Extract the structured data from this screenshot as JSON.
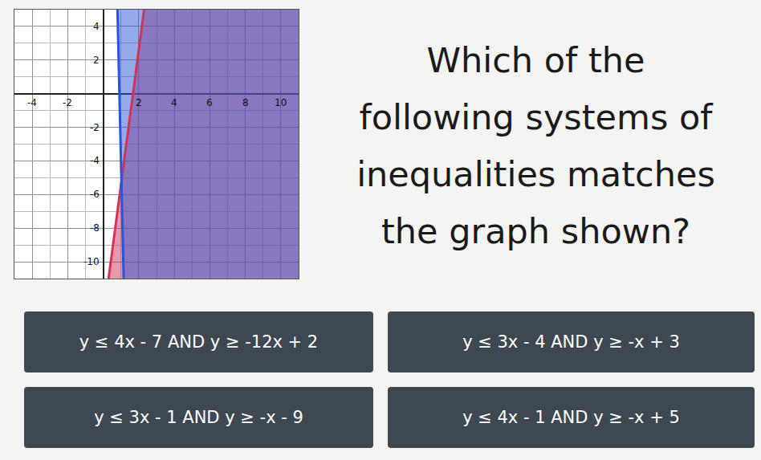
{
  "chart_data": {
    "type": "line",
    "xlim": [
      -5,
      11
    ],
    "ylim": [
      -11,
      5
    ],
    "xticks": [
      -4,
      -2,
      2,
      4,
      6,
      8,
      10
    ],
    "yticks": [
      -10,
      -8,
      -6,
      -4,
      -2,
      2,
      4
    ],
    "grid": true,
    "series": [
      {
        "color": "#d0345a",
        "x": [
          2.3,
          0.3
        ],
        "y": [
          5,
          -11
        ]
      },
      {
        "color": "#2b55d8",
        "x": [
          0.8,
          1.15
        ],
        "y": [
          5,
          -11
        ]
      }
    ]
  },
  "question": [
    "Which of the",
    "following systems of",
    "inequalities matches",
    "the graph shown?"
  ],
  "options": [
    "y ≤ 4x - 7 AND y ≥ -12x + 2",
    "y ≤ 3x - 4 AND y ≥ -x + 3",
    "y ≤ 3x - 1 AND y ≥ -x - 9",
    "y ≤ 4x - 1 AND y ≥ -x + 5"
  ]
}
